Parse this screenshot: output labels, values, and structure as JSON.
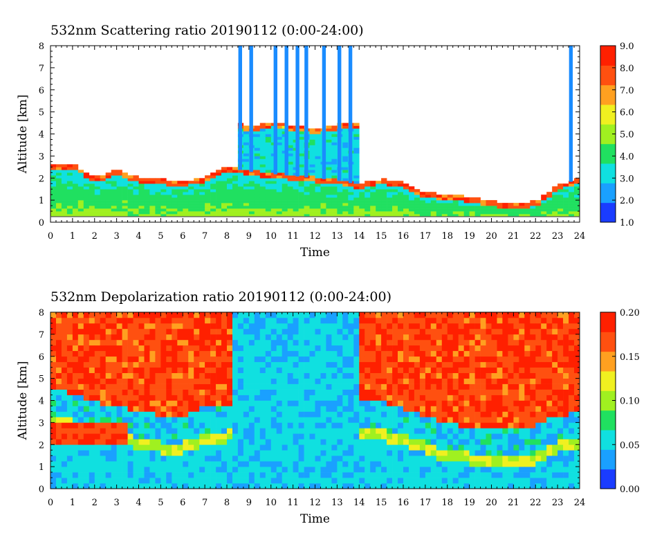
{
  "chart_data": [
    {
      "type": "heatmap",
      "title": "532nm Scattering ratio  20190112 (0:00-24:00)",
      "xlabel": "Time",
      "ylabel": "Altitude [km]",
      "xlim": [
        0,
        24
      ],
      "ylim": [
        0,
        8
      ],
      "x_ticks": [
        "0",
        "1",
        "2",
        "3",
        "4",
        "5",
        "6",
        "7",
        "8",
        "9",
        "10",
        "11",
        "12",
        "13",
        "14",
        "15",
        "16",
        "17",
        "18",
        "19",
        "20",
        "21",
        "22",
        "23",
        "24"
      ],
      "y_ticks": [
        "0",
        "1",
        "2",
        "3",
        "4",
        "5",
        "6",
        "7",
        "8"
      ],
      "colorbar": {
        "range": [
          1.0,
          9.0
        ],
        "ticks": [
          "1.0",
          "2.0",
          "3.0",
          "4.0",
          "5.0",
          "6.0",
          "7.0",
          "8.0",
          "9.0"
        ],
        "colors": [
          "#1a3cff",
          "#1aa0ff",
          "#10e0e0",
          "#20e060",
          "#a0f020",
          "#f0f020",
          "#ffa020",
          "#ff5010",
          "#ff2000"
        ]
      },
      "features": {
        "boundary_layer_top_km": [
          [
            0,
            2.5
          ],
          [
            1,
            2.6
          ],
          [
            2,
            2.0
          ],
          [
            3,
            2.3
          ],
          [
            4,
            2.0
          ],
          [
            5,
            1.9
          ],
          [
            6,
            1.8
          ],
          [
            7,
            2.0
          ],
          [
            8,
            2.5
          ],
          [
            9,
            2.3
          ],
          [
            10,
            2.2
          ],
          [
            11,
            2.1
          ],
          [
            12,
            2.0
          ],
          [
            13,
            1.9
          ],
          [
            14,
            1.7
          ],
          [
            15,
            1.9
          ],
          [
            16,
            1.8
          ],
          [
            17,
            1.3
          ],
          [
            18,
            1.2
          ],
          [
            19,
            1.1
          ],
          [
            20,
            0.9
          ],
          [
            21,
            0.8
          ],
          [
            22,
            0.9
          ],
          [
            23,
            1.6
          ],
          [
            24,
            2.0
          ]
        ],
        "cloud_base_km": [
          [
            8.5,
            4.4
          ],
          [
            9,
            4.3
          ],
          [
            10,
            4.5
          ],
          [
            11,
            4.3
          ],
          [
            12,
            4.2
          ],
          [
            13,
            4.4
          ]
        ],
        "clear_columns_to_8km_hours": [
          8.6,
          9.1,
          10.2,
          10.7,
          11.2,
          11.6,
          12.4,
          13.1,
          13.6,
          23.6
        ],
        "near_surface_line_km": 0.25
      }
    },
    {
      "type": "heatmap",
      "title": "532nm Depolarization ratio  20190112 (0:00-24:00)",
      "xlabel": "Time",
      "ylabel": "Altitude [km]",
      "xlim": [
        0,
        24
      ],
      "ylim": [
        0,
        8
      ],
      "x_ticks": [
        "0",
        "1",
        "2",
        "3",
        "4",
        "5",
        "6",
        "7",
        "8",
        "9",
        "10",
        "11",
        "12",
        "13",
        "14",
        "15",
        "16",
        "17",
        "18",
        "19",
        "20",
        "21",
        "22",
        "23",
        "24"
      ],
      "y_ticks": [
        "0",
        "1",
        "2",
        "3",
        "4",
        "5",
        "6",
        "7",
        "8"
      ],
      "colorbar": {
        "range": [
          0.0,
          0.2
        ],
        "ticks": [
          "0.00",
          "0.05",
          "0.10",
          "0.15",
          "0.20"
        ],
        "colors": [
          "#1a3cff",
          "#1aa0ff",
          "#10e0e0",
          "#20e060",
          "#a0f020",
          "#f0f020",
          "#ffa020",
          "#ff5010",
          "#ff2000"
        ]
      },
      "features": {
        "noisy_high_depol_regions_hours": [
          [
            0,
            8.3
          ],
          [
            14,
            24
          ]
        ],
        "low_depol_cloud_region_hours": [
          8.3,
          14
        ],
        "dust_layer_top_km": [
          [
            0,
            3.2
          ],
          [
            1,
            3.0
          ],
          [
            2,
            2.6
          ],
          [
            3,
            2.4
          ],
          [
            4,
            2.2
          ],
          [
            5,
            2.0
          ],
          [
            6,
            2.0
          ],
          [
            7,
            2.4
          ],
          [
            8,
            2.5
          ],
          [
            14,
            2.7
          ],
          [
            15,
            2.6
          ],
          [
            16,
            2.3
          ],
          [
            17,
            2.0
          ],
          [
            18,
            1.6
          ],
          [
            19,
            1.5
          ],
          [
            20,
            1.4
          ],
          [
            21,
            1.3
          ],
          [
            22,
            1.5
          ],
          [
            23,
            2.0
          ],
          [
            24,
            2.1
          ]
        ]
      }
    }
  ]
}
